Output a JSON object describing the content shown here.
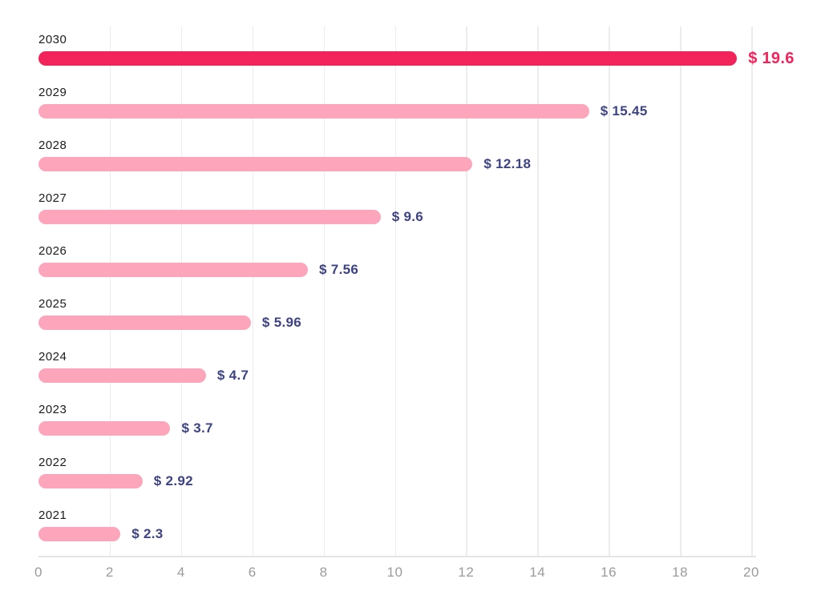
{
  "chart_data": {
    "type": "bar",
    "orientation": "horizontal",
    "title": "",
    "categories": [
      "2030",
      "2029",
      "2028",
      "2027",
      "2026",
      "2025",
      "2024",
      "2023",
      "2022",
      "2021"
    ],
    "values": [
      19.6,
      15.45,
      12.18,
      9.6,
      7.56,
      5.96,
      4.7,
      3.7,
      2.92,
      2.3
    ],
    "value_labels": [
      "$ 19.6",
      "$ 15.45",
      "$ 12.18",
      "$ 9.6",
      "$ 7.56",
      "$ 5.96",
      "$ 4.7",
      "$ 3.7",
      "$ 2.92",
      "$ 2.3"
    ],
    "highlight_index": 0,
    "xlim": [
      0,
      20
    ],
    "x_ticks": [
      "0",
      "2",
      "4",
      "6",
      "8",
      "10",
      "12",
      "14",
      "16",
      "18",
      "20"
    ],
    "grid": true,
    "legend": false,
    "colors": {
      "bar_default": "#fda5ba",
      "bar_highlight": "#f2235b",
      "value_label": "#3d4383",
      "value_label_highlight": "#f2235b",
      "category_label": "#1c1c1c",
      "tick_label": "#9b9b9b",
      "gridline": "#ececec",
      "axis_line": "#e4e4e4"
    }
  }
}
